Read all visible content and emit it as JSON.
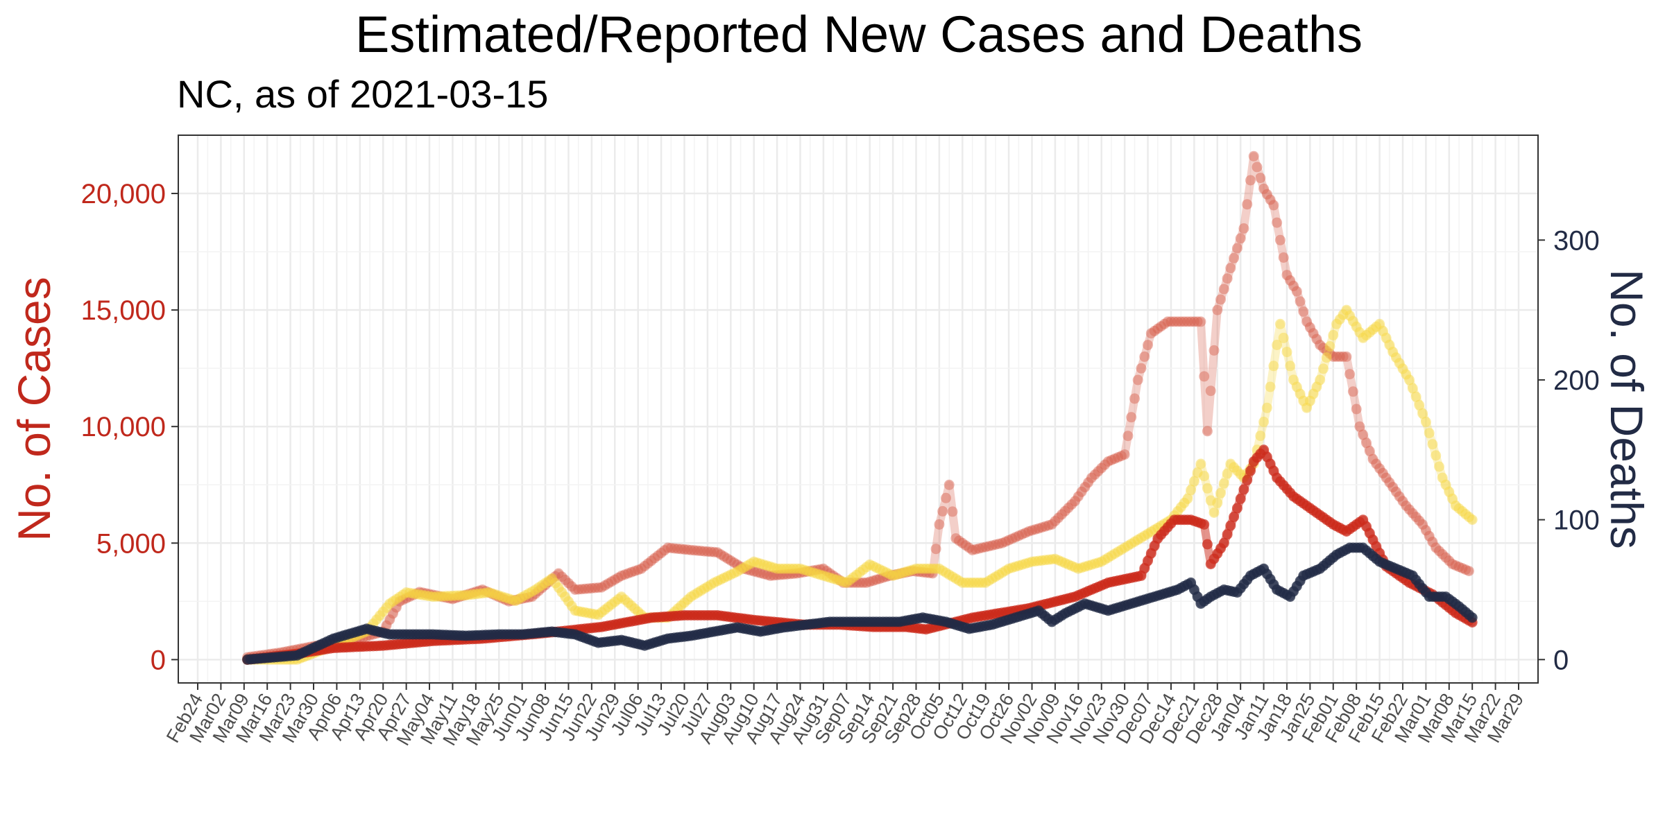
{
  "chart_data": {
    "type": "scatter",
    "title": "Estimated/Reported New Cases and Deaths",
    "subtitle": "NC, as of 2021-03-15",
    "ylabel_left": "No. of Cases",
    "ylabel_right": "No. of Deaths",
    "ylim_left": [
      -1000,
      22500
    ],
    "ylim_right": [
      -16.7,
      375
    ],
    "yticks_left": [
      0,
      5000,
      10000,
      15000,
      20000
    ],
    "yticks_left_labels": [
      "0",
      "5,000",
      "10,000",
      "15,000",
      "20,000"
    ],
    "yticks_right": [
      0,
      100,
      200,
      300
    ],
    "yticks_right_labels": [
      "0",
      "100",
      "200",
      "300"
    ],
    "xlim": [
      "2020-02-24",
      "2021-03-29"
    ],
    "xtick_labels": [
      "Feb24",
      "Mar02",
      "Mar09",
      "Mar16",
      "Mar23",
      "Mar30",
      "Apr06",
      "Apr13",
      "Apr20",
      "Apr27",
      "May04",
      "May11",
      "May18",
      "May25",
      "Jun01",
      "Jun08",
      "Jun15",
      "Jun22",
      "Jun29",
      "Jul06",
      "Jul13",
      "Jul20",
      "Jul27",
      "Aug03",
      "Aug10",
      "Aug17",
      "Aug24",
      "Aug31",
      "Sep07",
      "Sep14",
      "Sep21",
      "Sep28",
      "Oct05",
      "Oct12",
      "Oct19",
      "Oct26",
      "Nov02",
      "Nov09",
      "Nov16",
      "Nov23",
      "Nov30",
      "Dec07",
      "Dec14",
      "Dec21",
      "Dec28",
      "Jan04",
      "Jan11",
      "Jan18",
      "Jan25",
      "Feb01",
      "Feb08",
      "Feb15",
      "Feb22",
      "Mar01",
      "Mar08",
      "Mar15",
      "Mar22",
      "Mar29"
    ],
    "grid": true,
    "colors": {
      "reported_cases": "#d6604d",
      "estimated_cases": "#cc2a1a",
      "reported_deaths": "#f6d743",
      "estimated_deaths": "#222b45",
      "left_axis": "#c0281c",
      "right_axis": "#222b45"
    },
    "series": [
      {
        "axis": "left",
        "style": "light-red",
        "x": [
          "2020-03-10",
          "2020-03-20",
          "2020-03-31",
          "2020-04-10",
          "2020-04-20",
          "2020-04-25",
          "2020-05-01",
          "2020-05-11",
          "2020-05-20",
          "2020-05-28",
          "2020-06-04",
          "2020-06-12",
          "2020-06-17",
          "2020-06-25",
          "2020-07-01",
          "2020-07-07",
          "2020-07-15",
          "2020-07-22",
          "2020-07-30",
          "2020-08-07",
          "2020-08-15",
          "2020-08-23",
          "2020-08-31",
          "2020-09-06",
          "2020-09-13",
          "2020-09-20",
          "2020-09-27",
          "2020-10-03",
          "2020-10-05",
          "2020-10-08",
          "2020-10-10",
          "2020-10-15",
          "2020-10-24",
          "2020-11-01",
          "2020-11-08",
          "2020-11-15",
          "2020-11-20",
          "2020-11-25",
          "2020-11-30",
          "2020-12-04",
          "2020-12-08",
          "2020-12-13",
          "2020-12-19",
          "2020-12-23",
          "2020-12-25",
          "2020-12-28",
          "2021-01-01",
          "2021-01-05",
          "2021-01-08",
          "2021-01-11",
          "2021-01-14",
          "2021-01-18",
          "2021-01-21",
          "2021-01-24",
          "2021-01-28",
          "2021-02-01",
          "2021-02-05",
          "2021-02-09",
          "2021-02-13",
          "2021-02-18",
          "2021-02-23",
          "2021-02-28",
          "2021-03-04",
          "2021-03-09",
          "2021-03-14"
        ],
        "y": [
          100,
          300,
          600,
          800,
          1200,
          2500,
          2900,
          2600,
          3000,
          2500,
          2700,
          3700,
          3000,
          3100,
          3600,
          3900,
          4800,
          4700,
          4600,
          3900,
          3600,
          3700,
          3900,
          3300,
          3300,
          3600,
          3800,
          3700,
          5800,
          7500,
          5200,
          4700,
          5000,
          5500,
          5800,
          6800,
          7800,
          8500,
          8800,
          12000,
          14000,
          14500,
          14500,
          14500,
          9800,
          15000,
          16800,
          18500,
          21600,
          20200,
          19500,
          16500,
          15800,
          14500,
          13500,
          13000,
          13000,
          10000,
          8600,
          7600,
          6600,
          5800,
          4800,
          4100,
          3800
        ]
      },
      {
        "axis": "left",
        "style": "dark-red",
        "x": [
          "2020-03-10",
          "2020-03-25",
          "2020-04-05",
          "2020-04-20",
          "2020-05-05",
          "2020-05-20",
          "2020-06-05",
          "2020-06-25",
          "2020-07-10",
          "2020-07-20",
          "2020-07-30",
          "2020-08-10",
          "2020-08-25",
          "2020-09-05",
          "2020-09-15",
          "2020-09-25",
          "2020-10-01",
          "2020-10-15",
          "2020-11-01",
          "2020-11-15",
          "2020-11-25",
          "2020-12-05",
          "2020-12-10",
          "2020-12-15",
          "2020-12-20",
          "2020-12-24",
          "2020-12-26",
          "2020-12-30",
          "2021-01-03",
          "2021-01-08",
          "2021-01-11",
          "2021-01-15",
          "2021-01-20",
          "2021-01-25",
          "2021-02-01",
          "2021-02-05",
          "2021-02-10",
          "2021-02-17",
          "2021-02-24",
          "2021-03-03",
          "2021-03-10",
          "2021-03-15"
        ],
        "y": [
          0,
          250,
          500,
          600,
          800,
          900,
          1100,
          1400,
          1800,
          1900,
          1900,
          1700,
          1500,
          1500,
          1400,
          1400,
          1300,
          1800,
          2200,
          2700,
          3300,
          3600,
          5200,
          6000,
          6000,
          5800,
          4100,
          5000,
          6500,
          8500,
          9000,
          7800,
          7000,
          6500,
          5800,
          5500,
          6000,
          4000,
          3300,
          2800,
          2000,
          1600
        ]
      },
      {
        "axis": "right",
        "style": "yellow",
        "x": [
          "2020-03-10",
          "2020-03-25",
          "2020-04-05",
          "2020-04-15",
          "2020-04-22",
          "2020-04-27",
          "2020-05-05",
          "2020-05-15",
          "2020-05-22",
          "2020-05-30",
          "2020-06-05",
          "2020-06-10",
          "2020-06-17",
          "2020-06-24",
          "2020-07-01",
          "2020-07-08",
          "2020-07-15",
          "2020-07-22",
          "2020-07-29",
          "2020-08-05",
          "2020-08-10",
          "2020-08-17",
          "2020-08-24",
          "2020-08-31",
          "2020-09-07",
          "2020-09-14",
          "2020-09-21",
          "2020-09-28",
          "2020-10-05",
          "2020-10-12",
          "2020-10-19",
          "2020-10-26",
          "2020-11-02",
          "2020-11-09",
          "2020-11-16",
          "2020-11-23",
          "2020-11-30",
          "2020-12-07",
          "2020-12-14",
          "2020-12-19",
          "2020-12-23",
          "2020-12-27",
          "2021-01-01",
          "2021-01-05",
          "2021-01-08",
          "2021-01-12",
          "2021-01-16",
          "2021-01-20",
          "2021-01-24",
          "2021-01-28",
          "2021-02-02",
          "2021-02-05",
          "2021-02-10",
          "2021-02-15",
          "2021-02-19",
          "2021-02-24",
          "2021-03-01",
          "2021-03-06",
          "2021-03-10",
          "2021-03-15"
        ],
        "y": [
          0,
          0,
          10,
          20,
          40,
          48,
          45,
          46,
          48,
          42,
          50,
          58,
          35,
          32,
          45,
          30,
          30,
          45,
          55,
          63,
          70,
          65,
          65,
          60,
          55,
          68,
          60,
          65,
          65,
          55,
          55,
          65,
          70,
          72,
          65,
          70,
          80,
          90,
          100,
          115,
          140,
          105,
          140,
          130,
          140,
          180,
          240,
          200,
          180,
          200,
          240,
          250,
          230,
          240,
          220,
          200,
          170,
          130,
          110,
          100
        ]
      },
      {
        "axis": "right",
        "style": "navy",
        "x": [
          "2020-03-10",
          "2020-03-25",
          "2020-04-05",
          "2020-04-15",
          "2020-04-22",
          "2020-05-05",
          "2020-05-15",
          "2020-05-25",
          "2020-06-01",
          "2020-06-10",
          "2020-06-17",
          "2020-06-24",
          "2020-07-01",
          "2020-07-08",
          "2020-07-15",
          "2020-07-22",
          "2020-07-29",
          "2020-08-05",
          "2020-08-12",
          "2020-08-19",
          "2020-08-26",
          "2020-09-02",
          "2020-09-09",
          "2020-09-16",
          "2020-09-23",
          "2020-09-30",
          "2020-10-07",
          "2020-10-14",
          "2020-10-21",
          "2020-10-28",
          "2020-11-04",
          "2020-11-08",
          "2020-11-12",
          "2020-11-18",
          "2020-11-25",
          "2020-12-02",
          "2020-12-09",
          "2020-12-16",
          "2020-12-20",
          "2020-12-23",
          "2020-12-26",
          "2020-12-30",
          "2021-01-03",
          "2021-01-07",
          "2021-01-11",
          "2021-01-15",
          "2021-01-19",
          "2021-01-23",
          "2021-01-28",
          "2021-02-02",
          "2021-02-06",
          "2021-02-10",
          "2021-02-15",
          "2021-02-20",
          "2021-02-25",
          "2021-03-02",
          "2021-03-07",
          "2021-03-11",
          "2021-03-15"
        ],
        "y": [
          0,
          3,
          15,
          22,
          18,
          18,
          17,
          18,
          18,
          20,
          18,
          12,
          14,
          10,
          15,
          17,
          20,
          23,
          20,
          23,
          25,
          27,
          27,
          27,
          27,
          30,
          27,
          22,
          25,
          30,
          35,
          27,
          33,
          40,
          35,
          40,
          45,
          50,
          55,
          40,
          45,
          50,
          48,
          60,
          65,
          50,
          45,
          60,
          65,
          75,
          80,
          80,
          70,
          65,
          60,
          45,
          45,
          38,
          30
        ]
      }
    ]
  }
}
